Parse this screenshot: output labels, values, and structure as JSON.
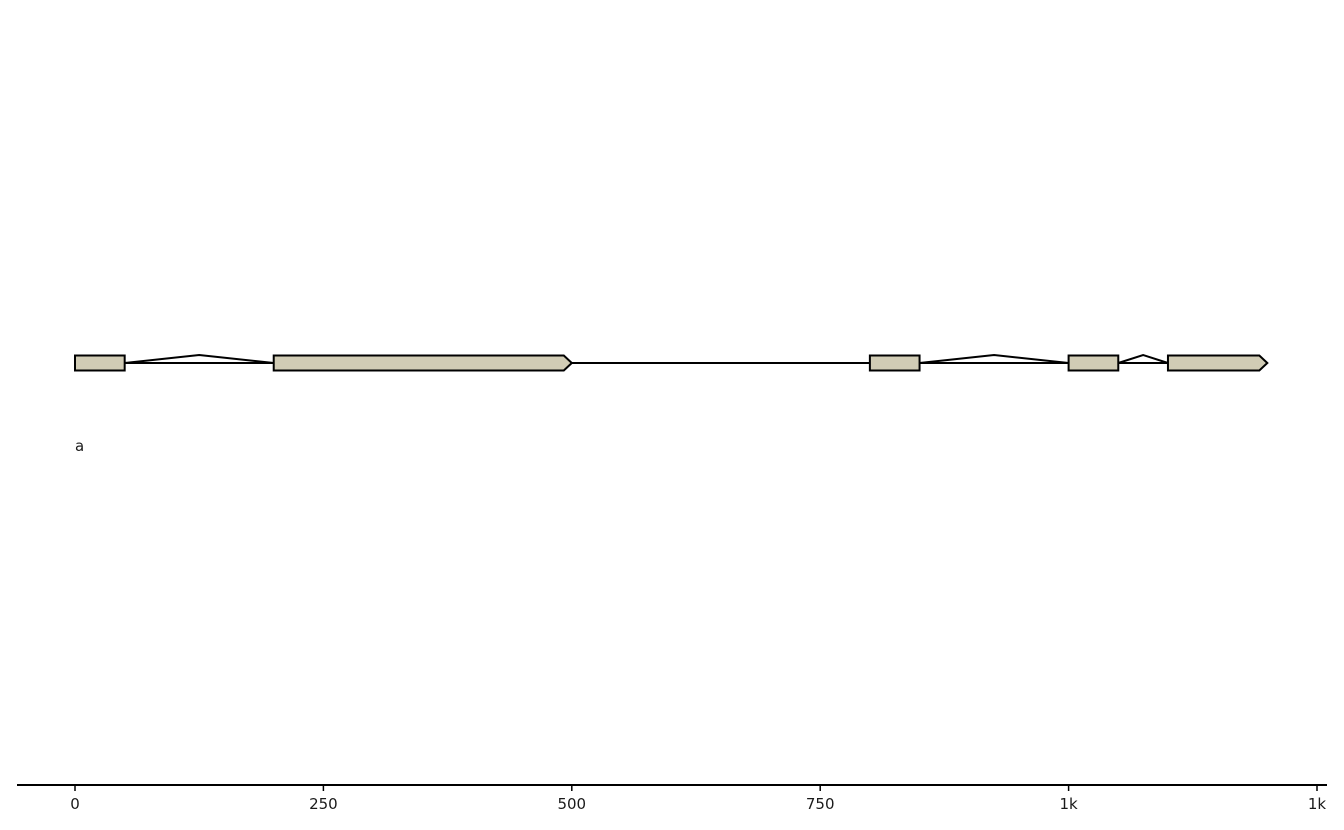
{
  "chart_data": {
    "type": "gene-structure",
    "xlim": [
      0,
      1250
    ],
    "axis": {
      "ticks": [
        {
          "value": 0,
          "label": "0"
        },
        {
          "value": 250,
          "label": "250"
        },
        {
          "value": 500,
          "label": "500"
        },
        {
          "value": 750,
          "label": "750"
        },
        {
          "value": 1000,
          "label": "1k"
        },
        {
          "value": 1250,
          "label": "1k"
        }
      ]
    },
    "transcripts": [
      {
        "label": "a",
        "strand": "+",
        "fill_color": "#d1ccb5",
        "stroke_color": "#000000",
        "features": [
          {
            "start": 0,
            "end": 50,
            "arrow": false
          },
          {
            "start": 200,
            "end": 500,
            "arrow": true
          },
          {
            "start": 800,
            "end": 850,
            "arrow": false
          },
          {
            "start": 1000,
            "end": 1050,
            "arrow": false
          },
          {
            "start": 1100,
            "end": 1200,
            "arrow": true
          }
        ],
        "introns": [
          {
            "start": 50,
            "end": 200
          },
          {
            "start": 850,
            "end": 1000
          },
          {
            "start": 1050,
            "end": 1100
          }
        ],
        "spacers": [
          {
            "start": 500,
            "end": 800
          }
        ]
      }
    ]
  }
}
